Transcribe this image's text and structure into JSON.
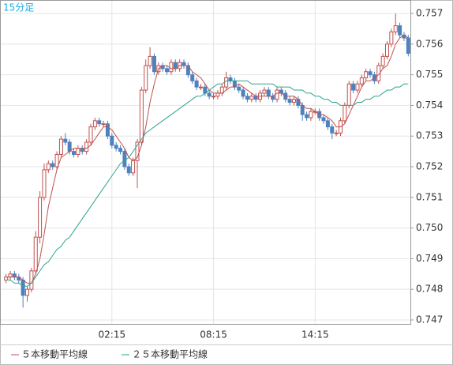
{
  "chart_data": {
    "type": "candlestick",
    "title": "15分足",
    "x": [
      null,
      null,
      null,
      null,
      null,
      null,
      null,
      null,
      null,
      null,
      null,
      null,
      null,
      null,
      null,
      null,
      null,
      null,
      null,
      null,
      null,
      null,
      null,
      null,
      null,
      "02:15",
      null,
      null,
      null,
      null,
      null,
      null,
      null,
      null,
      null,
      null,
      null,
      null,
      null,
      null,
      null,
      null,
      null,
      null,
      null,
      null,
      null,
      null,
      null,
      "08:15",
      null,
      null,
      null,
      null,
      null,
      null,
      null,
      null,
      null,
      null,
      null,
      null,
      null,
      null,
      null,
      null,
      null,
      null,
      null,
      null,
      null,
      null,
      null,
      "14:15",
      null,
      null,
      null,
      null,
      null,
      null,
      null,
      null,
      null,
      null,
      null,
      null,
      null,
      null,
      null,
      null,
      null,
      null,
      null,
      null,
      null,
      null
    ],
    "open": [
      0.7483,
      0.7484,
      0.7485,
      0.7484,
      0.7483,
      0.7478,
      0.748,
      0.7486,
      0.7497,
      0.751,
      0.7519,
      0.7521,
      0.752,
      0.7524,
      0.7529,
      0.7528,
      0.7525,
      0.7524,
      0.7526,
      0.7525,
      0.7528,
      0.7533,
      0.7535,
      0.7534,
      0.7534,
      0.753,
      0.7527,
      0.7526,
      0.7525,
      0.752,
      0.7518,
      0.7522,
      0.7528,
      0.7545,
      0.7553,
      0.7556,
      0.7551,
      0.7553,
      0.7552,
      0.7551,
      0.7554,
      0.7552,
      0.7554,
      0.7553,
      0.755,
      0.7548,
      0.7546,
      0.7546,
      0.7544,
      0.7543,
      0.7543,
      0.7544,
      0.7546,
      0.7549,
      0.7548,
      0.7546,
      0.7545,
      0.7543,
      0.7542,
      0.7543,
      0.7542,
      0.7544,
      0.7545,
      0.7543,
      0.7542,
      0.7545,
      0.7544,
      0.7542,
      0.7541,
      0.7542,
      0.754,
      0.7537,
      0.7536,
      0.7538,
      0.7538,
      0.7536,
      0.7535,
      0.7533,
      0.7531,
      0.7531,
      0.7535,
      0.754,
      0.7547,
      0.7545,
      0.7547,
      0.7549,
      0.7551,
      0.755,
      0.7548,
      0.7553,
      0.7556,
      0.756,
      0.7564,
      0.7566,
      0.7563,
      0.7562
    ],
    "high": [
      0.7485,
      0.7486,
      0.7486,
      0.7485,
      0.7484,
      0.7481,
      0.7487,
      0.7499,
      0.7512,
      0.7521,
      0.7522,
      0.7522,
      0.7525,
      0.753,
      0.7531,
      0.7529,
      0.7526,
      0.7527,
      0.7527,
      0.7529,
      0.7534,
      0.7536,
      0.7536,
      0.7535,
      0.7535,
      0.7531,
      0.7528,
      0.7527,
      0.7526,
      0.7521,
      0.7523,
      0.7529,
      0.7546,
      0.7555,
      0.7559,
      0.7557,
      0.7554,
      0.7554,
      0.7553,
      0.7555,
      0.7555,
      0.7555,
      0.7555,
      0.7554,
      0.7551,
      0.7549,
      0.7547,
      0.7547,
      0.7545,
      0.7544,
      0.7545,
      0.7547,
      0.7551,
      0.755,
      0.7549,
      0.7547,
      0.7546,
      0.7544,
      0.7544,
      0.7544,
      0.7545,
      0.7546,
      0.7546,
      0.7544,
      0.7546,
      0.7546,
      0.7545,
      0.7543,
      0.7543,
      0.7543,
      0.7541,
      0.7538,
      0.7539,
      0.7539,
      0.7539,
      0.7537,
      0.7536,
      0.7534,
      0.7532,
      0.7536,
      0.7541,
      0.7548,
      0.7548,
      0.7548,
      0.755,
      0.7552,
      0.7552,
      0.7551,
      0.7554,
      0.7557,
      0.7561,
      0.7565,
      0.757,
      0.7567,
      0.7564,
      0.7563
    ],
    "low": [
      0.7482,
      0.7483,
      0.7483,
      0.7482,
      0.7474,
      0.7476,
      0.7479,
      0.7485,
      0.7495,
      0.7509,
      0.7518,
      0.7519,
      0.7519,
      0.7523,
      0.7527,
      0.7524,
      0.7523,
      0.7523,
      0.7524,
      0.7524,
      0.7527,
      0.7532,
      0.7533,
      0.7533,
      0.7529,
      0.7526,
      0.7525,
      0.7524,
      0.7519,
      0.7517,
      0.7517,
      0.7513,
      0.7527,
      0.7544,
      0.7552,
      0.755,
      0.755,
      0.7551,
      0.755,
      0.755,
      0.7551,
      0.7551,
      0.7552,
      0.7549,
      0.7547,
      0.7545,
      0.7545,
      0.7543,
      0.7542,
      0.7542,
      0.7542,
      0.7543,
      0.7545,
      0.7547,
      0.7545,
      0.7544,
      0.7542,
      0.7541,
      0.7541,
      0.7541,
      0.7541,
      0.7543,
      0.7542,
      0.7541,
      0.7541,
      0.7543,
      0.7541,
      0.754,
      0.754,
      0.7539,
      0.7535,
      0.7535,
      0.7535,
      0.7537,
      0.7535,
      0.7534,
      0.7532,
      0.7529,
      0.753,
      0.753,
      0.7534,
      0.7539,
      0.7544,
      0.7544,
      0.7546,
      0.7548,
      0.7549,
      0.7547,
      0.7547,
      0.7552,
      0.7555,
      0.7559,
      0.7563,
      0.7562,
      0.7561,
      0.7556
    ],
    "close": [
      0.7484,
      0.7485,
      0.7484,
      0.7483,
      0.7478,
      0.748,
      0.7486,
      0.7497,
      0.751,
      0.7519,
      0.7521,
      0.752,
      0.7524,
      0.7529,
      0.7528,
      0.7525,
      0.7524,
      0.7526,
      0.7525,
      0.7528,
      0.7533,
      0.7535,
      0.7534,
      0.7534,
      0.753,
      0.7527,
      0.7526,
      0.7525,
      0.752,
      0.7518,
      0.7522,
      0.7528,
      0.7545,
      0.7553,
      0.7556,
      0.7551,
      0.7553,
      0.7552,
      0.7551,
      0.7554,
      0.7552,
      0.7554,
      0.7553,
      0.755,
      0.7548,
      0.7546,
      0.7546,
      0.7544,
      0.7543,
      0.7543,
      0.7544,
      0.7546,
      0.7549,
      0.7548,
      0.7546,
      0.7545,
      0.7543,
      0.7542,
      0.7543,
      0.7542,
      0.7544,
      0.7545,
      0.7543,
      0.7542,
      0.7545,
      0.7544,
      0.7542,
      0.7541,
      0.7542,
      0.754,
      0.7537,
      0.7536,
      0.7538,
      0.7538,
      0.7536,
      0.7535,
      0.7533,
      0.7531,
      0.7531,
      0.7535,
      0.754,
      0.7547,
      0.7545,
      0.7547,
      0.7549,
      0.7551,
      0.755,
      0.7548,
      0.7553,
      0.7556,
      0.756,
      0.7564,
      0.7566,
      0.7563,
      0.7562,
      0.7557
    ],
    "up_color": "#c0504d",
    "down_color": "#4f81bd",
    "series": [
      {
        "name": "５本移動平均線",
        "color": "#c0504d",
        "values": [
          0.7484,
          0.7484,
          0.7484,
          0.7484,
          0.7483,
          0.7482,
          0.7482,
          0.7485,
          0.749,
          0.7498,
          0.7507,
          0.7513,
          0.7519,
          0.7523,
          0.7524,
          0.7525,
          0.7526,
          0.7526,
          0.7526,
          0.7526,
          0.7527,
          0.7529,
          0.7531,
          0.7533,
          0.7533,
          0.7532,
          0.753,
          0.7528,
          0.7526,
          0.7523,
          0.7522,
          0.7523,
          0.7527,
          0.7533,
          0.7541,
          0.7547,
          0.7552,
          0.7553,
          0.7553,
          0.7552,
          0.7552,
          0.7553,
          0.7553,
          0.7553,
          0.7551,
          0.755,
          0.7549,
          0.7547,
          0.7545,
          0.7544,
          0.7544,
          0.7544,
          0.7545,
          0.7546,
          0.7546,
          0.7547,
          0.7546,
          0.7545,
          0.7544,
          0.7543,
          0.7543,
          0.7543,
          0.7543,
          0.7543,
          0.7544,
          0.7544,
          0.7543,
          0.7543,
          0.7543,
          0.7542,
          0.754,
          0.7539,
          0.7539,
          0.7538,
          0.7537,
          0.7537,
          0.7536,
          0.7535,
          0.7533,
          0.7533,
          0.7534,
          0.7537,
          0.754,
          0.7543,
          0.7546,
          0.7548,
          0.7548,
          0.7549,
          0.755,
          0.7552,
          0.7553,
          0.7556,
          0.756,
          0.7562,
          0.7563,
          0.7562
        ]
      },
      {
        "name": "２５本移動平均線",
        "color": "#2ca58d",
        "values": [
          0.7483,
          0.7483,
          0.7482,
          0.7482,
          0.7481,
          0.7481,
          0.7482,
          0.7484,
          0.7486,
          0.7488,
          0.7489,
          0.7491,
          0.7493,
          0.7494,
          0.7496,
          0.7497,
          0.7499,
          0.7501,
          0.7503,
          0.7505,
          0.7507,
          0.7509,
          0.7511,
          0.7513,
          0.7515,
          0.7517,
          0.7519,
          0.7521,
          0.7522,
          0.7523,
          0.7525,
          0.7527,
          0.7529,
          0.7531,
          0.7532,
          0.7533,
          0.7534,
          0.7535,
          0.7536,
          0.7537,
          0.7538,
          0.7539,
          0.754,
          0.7541,
          0.7542,
          0.7543,
          0.7543,
          0.7544,
          0.7545,
          0.7546,
          0.7547,
          0.7547,
          0.7548,
          0.7548,
          0.7548,
          0.7548,
          0.7548,
          0.7548,
          0.7547,
          0.7547,
          0.7547,
          0.7547,
          0.7547,
          0.7547,
          0.7546,
          0.7546,
          0.7546,
          0.7546,
          0.7545,
          0.7545,
          0.7545,
          0.7544,
          0.7544,
          0.7543,
          0.7543,
          0.7542,
          0.7542,
          0.7541,
          0.7541,
          0.754,
          0.754,
          0.754,
          0.754,
          0.7541,
          0.7541,
          0.7542,
          0.7542,
          0.7543,
          0.7543,
          0.7544,
          0.7545,
          0.7545,
          0.7546,
          0.7546,
          0.7547,
          0.7547
        ]
      }
    ],
    "ylim": [
      0.74687,
      0.75744
    ],
    "yticks": [
      0.747,
      0.748,
      0.749,
      {
        "value": 0.75,
        "label": "0.750"
      },
      0.751,
      0.752,
      0.753,
      0.754,
      0.755,
      0.756,
      0.757
    ],
    "grid": true
  }
}
